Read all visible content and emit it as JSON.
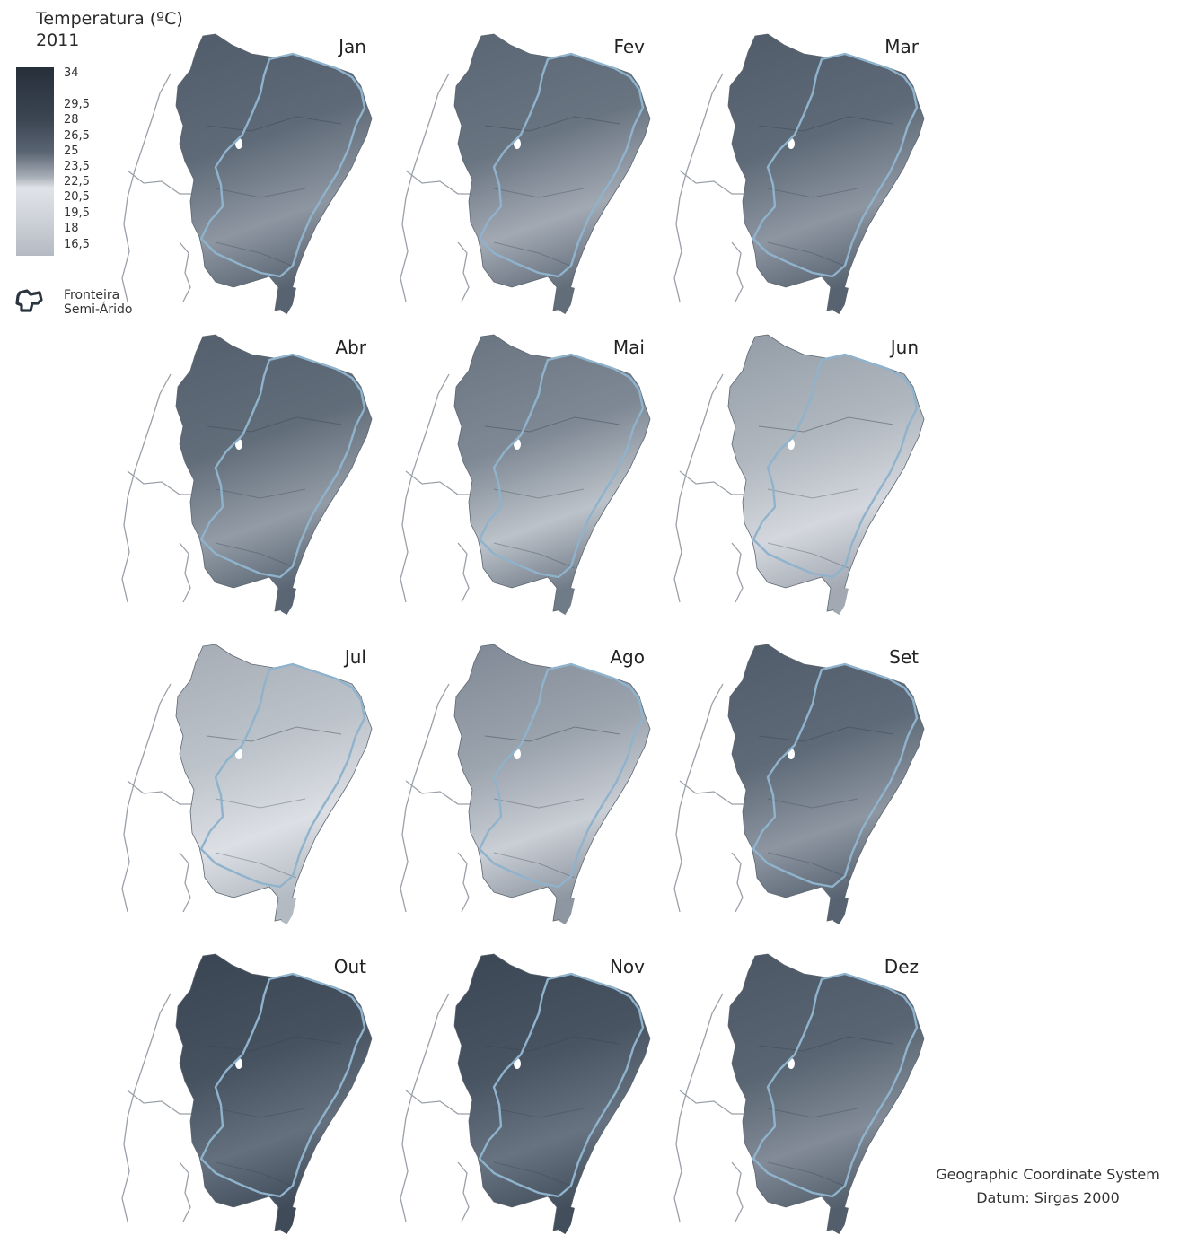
{
  "legend": {
    "title_line1": "Temperatura (ºC)",
    "title_line2": "2011",
    "ticks": [
      "34",
      "29,5",
      "28",
      "26,5",
      "25",
      "23,5",
      "22,5",
      "20,5",
      "19,5",
      "18",
      "16,5"
    ],
    "colors": {
      "hot": "#2c3845",
      "warm": "#4c5866",
      "mid": "#707b88",
      "cool": "#b9bfc7",
      "cold": "#dcdfe4"
    },
    "border_label_line1": "Fronteira",
    "border_label_line2": "Semi-Árido",
    "border_color": "#8fb3cc"
  },
  "months": [
    {
      "label": "Jan",
      "level": 0.62
    },
    {
      "label": "Fev",
      "level": 0.55
    },
    {
      "label": "Mar",
      "level": 0.62
    },
    {
      "label": "Abr",
      "level": 0.6
    },
    {
      "label": "Mai",
      "level": 0.45
    },
    {
      "label": "Jun",
      "level": 0.28
    },
    {
      "label": "Jul",
      "level": 0.22
    },
    {
      "label": "Ago",
      "level": 0.35
    },
    {
      "label": "Set",
      "level": 0.62
    },
    {
      "label": "Out",
      "level": 0.8
    },
    {
      "label": "Nov",
      "level": 0.78
    },
    {
      "label": "Dez",
      "level": 0.66
    }
  ],
  "crs": {
    "line1": "Geographic Coordinate System",
    "line2": "Datum: Sirgas 2000"
  }
}
